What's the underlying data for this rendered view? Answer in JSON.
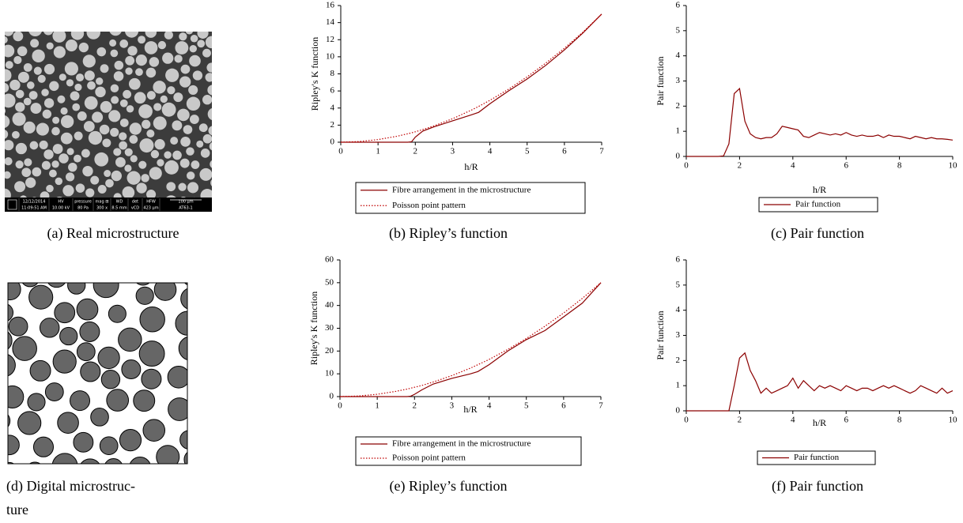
{
  "images": [
    {
      "caption": "(a) Real microstructure",
      "info_bar": [
        [
          "12/12/2014",
          "11:09:51 AM"
        ],
        [
          "HV",
          "10.00 kV"
        ],
        [
          "pressure",
          "80 Pa"
        ],
        [
          "mag ⊞",
          "300 x"
        ],
        [
          "WD",
          "8.5 mm"
        ],
        [
          "det",
          "vCD"
        ],
        [
          "HFW",
          "423 µm"
        ],
        [
          "100 µm",
          "AT63-1"
        ]
      ]
    },
    {
      "caption": [
        "(d) Digital microstruc-",
        "ture"
      ]
    }
  ],
  "chart_data": [
    {
      "type": "line",
      "caption": "(b) Ripley’s function",
      "xlabel": "h/R",
      "ylabel": "Ripley's K function",
      "x": [
        0,
        0.5,
        1,
        1.5,
        1.8,
        1.9,
        2,
        2.2,
        2.5,
        3,
        3.5,
        3.7,
        4,
        4.5,
        5,
        5.5,
        6,
        6.5,
        7
      ],
      "xlim": [
        0,
        7
      ],
      "ylim": [
        0,
        16
      ],
      "xticks": [
        0,
        1,
        2,
        3,
        4,
        5,
        6,
        7
      ],
      "yticks": [
        0,
        2,
        4,
        6,
        8,
        10,
        12,
        14,
        16
      ],
      "series": [
        {
          "name": "Fibre arrangement in the microstructure",
          "color": "#8b0000",
          "dash": "solid",
          "values": [
            0,
            0,
            0,
            0,
            0,
            0.05,
            0.6,
            1.3,
            1.8,
            2.5,
            3.2,
            3.5,
            4.5,
            6.0,
            7.4,
            9.0,
            10.8,
            12.8,
            15.0
          ]
        },
        {
          "name": "Poisson point pattern",
          "color": "#c00000",
          "dash": "dotted",
          "values": [
            0,
            0.08,
            0.31,
            0.69,
            0.99,
            1.1,
            1.22,
            1.48,
            1.91,
            2.75,
            3.75,
            4.19,
            4.9,
            6.2,
            7.65,
            9.26,
            11.0,
            12.9,
            15.0
          ]
        }
      ]
    },
    {
      "type": "line",
      "caption": "(c) Pair function",
      "xlabel": "h/R",
      "ylabel": "Pair function",
      "x": [
        0,
        0.2,
        0.4,
        0.6,
        0.8,
        1,
        1.2,
        1.4,
        1.6,
        1.8,
        2,
        2.2,
        2.4,
        2.6,
        2.8,
        3,
        3.2,
        3.4,
        3.6,
        3.8,
        4,
        4.2,
        4.4,
        4.6,
        4.8,
        5,
        5.2,
        5.4,
        5.6,
        5.8,
        6,
        6.2,
        6.4,
        6.6,
        6.8,
        7,
        7.2,
        7.4,
        7.6,
        7.8,
        8,
        8.2,
        8.4,
        8.6,
        8.8,
        9,
        9.2,
        9.4,
        9.6,
        9.8,
        10
      ],
      "xlim": [
        0,
        10
      ],
      "ylim": [
        0,
        6
      ],
      "xticks": [
        0,
        2,
        4,
        6,
        8,
        10
      ],
      "yticks": [
        0,
        1,
        2,
        3,
        4,
        5,
        6
      ],
      "series": [
        {
          "name": "Pair function",
          "color": "#8b0000",
          "dash": "solid",
          "values": [
            0,
            0,
            0,
            0,
            0,
            0,
            0,
            0.02,
            0.5,
            2.5,
            2.7,
            1.4,
            0.9,
            0.75,
            0.7,
            0.75,
            0.75,
            0.9,
            1.2,
            1.15,
            1.1,
            1.05,
            0.8,
            0.75,
            0.85,
            0.95,
            0.9,
            0.85,
            0.9,
            0.85,
            0.95,
            0.85,
            0.8,
            0.85,
            0.8,
            0.8,
            0.85,
            0.75,
            0.85,
            0.8,
            0.8,
            0.75,
            0.7,
            0.8,
            0.75,
            0.7,
            0.75,
            0.7,
            0.7,
            0.68,
            0.65
          ]
        }
      ]
    },
    {
      "type": "line",
      "caption": "(e) Ripley’s function",
      "xlabel": "h/R",
      "ylabel": "Ripley's K function",
      "x": [
        0,
        0.5,
        1,
        1.5,
        1.8,
        1.9,
        2,
        2.2,
        2.5,
        3,
        3.5,
        3.7,
        4,
        4.5,
        5,
        5.5,
        6,
        6.5,
        7
      ],
      "xlim": [
        0,
        7
      ],
      "ylim": [
        0,
        60
      ],
      "xticks": [
        0,
        1,
        2,
        3,
        4,
        5,
        6,
        7
      ],
      "yticks": [
        0,
        10,
        20,
        30,
        40,
        50,
        60
      ],
      "series": [
        {
          "name": "Fibre arrangement in the microstructure",
          "color": "#8b0000",
          "dash": "solid",
          "values": [
            0,
            0,
            0,
            0,
            0,
            0.2,
            1,
            3,
            5.5,
            8,
            10,
            11,
            14,
            20,
            25,
            29,
            35,
            41,
            50
          ]
        },
        {
          "name": "Poisson point pattern",
          "color": "#c00000",
          "dash": "dotted",
          "values": [
            0,
            0.26,
            1.02,
            2.3,
            3.3,
            3.7,
            4.1,
            4.9,
            6.4,
            9.2,
            12.5,
            14,
            16.3,
            20.7,
            25.5,
            30.9,
            36.7,
            43.1,
            50
          ]
        }
      ]
    },
    {
      "type": "line",
      "caption": "(f) Pair function",
      "xlabel": "h/R",
      "ylabel": "Pair function",
      "x": [
        0,
        0.2,
        0.4,
        0.6,
        0.8,
        1,
        1.2,
        1.4,
        1.6,
        1.8,
        2,
        2.2,
        2.4,
        2.6,
        2.8,
        3,
        3.2,
        3.4,
        3.6,
        3.8,
        4,
        4.2,
        4.4,
        4.6,
        4.8,
        5,
        5.2,
        5.4,
        5.6,
        5.8,
        6,
        6.2,
        6.4,
        6.6,
        6.8,
        7,
        7.2,
        7.4,
        7.6,
        7.8,
        8,
        8.2,
        8.4,
        8.6,
        8.8,
        9,
        9.2,
        9.4,
        9.6,
        9.8,
        10
      ],
      "xlim": [
        0,
        10
      ],
      "ylim": [
        0,
        6
      ],
      "xticks": [
        0,
        2,
        4,
        6,
        8,
        10
      ],
      "yticks": [
        0,
        1,
        2,
        3,
        4,
        5,
        6
      ],
      "series": [
        {
          "name": "Pair function",
          "color": "#8b0000",
          "dash": "solid",
          "values": [
            0,
            0,
            0,
            0,
            0,
            0,
            0,
            0,
            0,
            1.0,
            2.1,
            2.3,
            1.6,
            1.2,
            0.7,
            0.9,
            0.7,
            0.8,
            0.9,
            1.0,
            1.3,
            0.9,
            1.2,
            1.0,
            0.8,
            1.0,
            0.9,
            1.0,
            0.9,
            0.8,
            1.0,
            0.9,
            0.8,
            0.9,
            0.9,
            0.8,
            0.9,
            1.0,
            0.9,
            1.0,
            0.9,
            0.8,
            0.7,
            0.8,
            1.0,
            0.9,
            0.8,
            0.7,
            0.9,
            0.7,
            0.8
          ]
        }
      ]
    }
  ]
}
